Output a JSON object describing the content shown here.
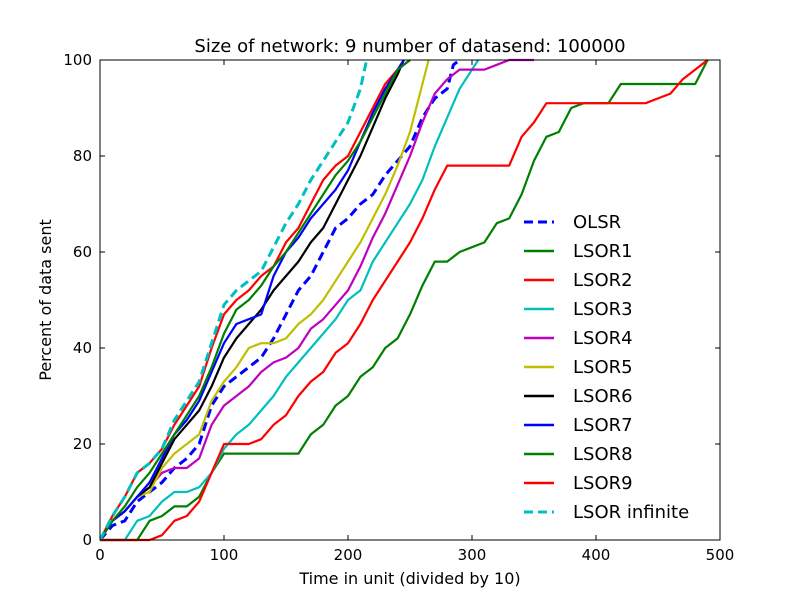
{
  "chart_data": {
    "type": "line",
    "title": "Size of network: 9 number of datasend: 100000",
    "xlabel": "Time in unit (divided by 10)",
    "ylabel": "Percent of data sent",
    "xlim": [
      0,
      500
    ],
    "ylim": [
      0,
      100
    ],
    "xticks": [
      0,
      100,
      200,
      300,
      400,
      500
    ],
    "yticks": [
      0,
      20,
      40,
      60,
      80,
      100
    ],
    "xtick_labels": [
      "0",
      "100",
      "200",
      "300",
      "400",
      "500"
    ],
    "ytick_labels": [
      "0",
      "20",
      "40",
      "60",
      "80",
      "100"
    ],
    "grid": false,
    "legend_position": "lower-right",
    "series": [
      {
        "name": "OLSR",
        "color": "#0000ff",
        "dash": true,
        "x": [
          0,
          10,
          20,
          30,
          40,
          50,
          60,
          70,
          80,
          90,
          100,
          110,
          120,
          130,
          140,
          150,
          160,
          170,
          180,
          190,
          200,
          210,
          220,
          230,
          240,
          250,
          260,
          270,
          280,
          285,
          290
        ],
        "y": [
          0,
          3,
          4,
          8,
          10,
          12,
          15,
          17,
          20,
          28,
          32,
          34,
          36,
          38,
          42,
          47,
          52,
          55,
          60,
          65,
          67,
          70,
          72,
          76,
          79,
          82,
          88,
          92,
          94,
          99,
          100
        ]
      },
      {
        "name": "LSOR1",
        "color": "#008000",
        "dash": false,
        "x": [
          0,
          30,
          40,
          50,
          60,
          70,
          80,
          90,
          100,
          160,
          170,
          180,
          190,
          200,
          210,
          220,
          230,
          240,
          250,
          260,
          270,
          280,
          290,
          300,
          310,
          320,
          330,
          340,
          350,
          360,
          370,
          380,
          390,
          410,
          420,
          430,
          450,
          470,
          480,
          490
        ],
        "y": [
          0,
          0,
          4,
          5,
          7,
          7,
          9,
          14,
          18,
          18,
          22,
          24,
          28,
          30,
          34,
          36,
          40,
          42,
          47,
          53,
          58,
          58,
          60,
          61,
          62,
          66,
          67,
          72,
          79,
          84,
          85,
          90,
          91,
          91,
          95,
          95,
          95,
          95,
          95,
          100
        ]
      },
      {
        "name": "LSOR2",
        "color": "#ff0000",
        "dash": false,
        "x": [
          0,
          10,
          20,
          30,
          40,
          50,
          60,
          70,
          80,
          90,
          100,
          110,
          120,
          130,
          140,
          150,
          160,
          170,
          180,
          190,
          200,
          210,
          220,
          230,
          240,
          250
        ],
        "y": [
          0,
          5,
          9,
          14,
          16,
          19,
          24,
          28,
          32,
          40,
          47,
          50,
          52,
          55,
          57,
          62,
          65,
          70,
          75,
          78,
          80,
          85,
          90,
          95,
          98,
          100
        ]
      },
      {
        "name": "LSOR3",
        "color": "#00bfbf",
        "dash": false,
        "x": [
          0,
          20,
          30,
          40,
          50,
          60,
          70,
          80,
          90,
          100,
          110,
          120,
          130,
          140,
          150,
          160,
          170,
          180,
          190,
          200,
          210,
          220,
          230,
          240,
          250,
          260,
          270,
          280,
          290,
          300,
          305
        ],
        "y": [
          0,
          0,
          4,
          5,
          8,
          10,
          10,
          11,
          14,
          19,
          22,
          24,
          27,
          30,
          34,
          37,
          40,
          43,
          46,
          50,
          52,
          58,
          62,
          66,
          70,
          75,
          82,
          88,
          94,
          98,
          100
        ]
      },
      {
        "name": "LSOR4",
        "color": "#bf00bf",
        "dash": false,
        "x": [
          0,
          10,
          20,
          30,
          40,
          50,
          60,
          70,
          80,
          90,
          100,
          110,
          120,
          130,
          140,
          150,
          160,
          170,
          180,
          190,
          200,
          210,
          220,
          230,
          240,
          250,
          260,
          270,
          280,
          290,
          300,
          310,
          320,
          330,
          340,
          350
        ],
        "y": [
          0,
          4,
          6,
          9,
          11,
          14,
          15,
          15,
          17,
          24,
          28,
          30,
          32,
          35,
          37,
          38,
          40,
          44,
          46,
          49,
          52,
          57,
          63,
          68,
          74,
          80,
          87,
          93,
          96,
          98,
          98,
          98,
          99,
          100,
          100,
          100
        ]
      },
      {
        "name": "LSOR5",
        "color": "#bfbf00",
        "dash": false,
        "x": [
          0,
          10,
          20,
          30,
          40,
          50,
          60,
          70,
          80,
          90,
          100,
          110,
          120,
          130,
          140,
          150,
          160,
          170,
          180,
          190,
          200,
          210,
          220,
          230,
          240,
          250,
          260,
          265
        ],
        "y": [
          0,
          4,
          6,
          9,
          10,
          15,
          18,
          20,
          22,
          29,
          33,
          36,
          40,
          41,
          41,
          42,
          45,
          47,
          50,
          54,
          58,
          62,
          67,
          72,
          78,
          85,
          95,
          100
        ]
      },
      {
        "name": "LSOR6",
        "color": "#000000",
        "dash": false,
        "x": [
          0,
          10,
          20,
          30,
          40,
          50,
          60,
          70,
          80,
          90,
          100,
          110,
          120,
          130,
          140,
          150,
          160,
          170,
          180,
          190,
          200,
          210,
          220,
          230,
          240,
          245
        ],
        "y": [
          0,
          4,
          6,
          9,
          11,
          16,
          21,
          24,
          27,
          32,
          38,
          42,
          45,
          48,
          52,
          55,
          58,
          62,
          65,
          70,
          75,
          80,
          86,
          92,
          97,
          100
        ]
      },
      {
        "name": "LSOR7",
        "color": "#0000ff",
        "dash": false,
        "x": [
          0,
          10,
          20,
          30,
          40,
          50,
          60,
          70,
          80,
          90,
          100,
          110,
          120,
          130,
          140,
          150,
          160,
          170,
          180,
          190,
          200,
          210,
          220,
          230,
          240,
          245
        ],
        "y": [
          0,
          4,
          6,
          9,
          12,
          17,
          22,
          25,
          29,
          35,
          41,
          45,
          46,
          47,
          55,
          60,
          63,
          67,
          70,
          73,
          77,
          83,
          89,
          94,
          98,
          100
        ]
      },
      {
        "name": "LSOR8",
        "color": "#008000",
        "dash": false,
        "x": [
          0,
          10,
          20,
          30,
          40,
          50,
          60,
          70,
          80,
          90,
          100,
          110,
          120,
          130,
          140,
          150,
          160,
          170,
          180,
          190,
          200,
          210,
          220,
          230,
          240,
          250
        ],
        "y": [
          0,
          4,
          7,
          11,
          14,
          18,
          22,
          26,
          30,
          36,
          43,
          48,
          50,
          53,
          57,
          60,
          64,
          68,
          72,
          76,
          79,
          83,
          88,
          93,
          98,
          100
        ]
      },
      {
        "name": "LSOR9",
        "color": "#ff0000",
        "dash": false,
        "x": [
          0,
          40,
          50,
          60,
          70,
          80,
          90,
          100,
          110,
          120,
          130,
          140,
          150,
          160,
          170,
          180,
          190,
          200,
          210,
          220,
          230,
          240,
          250,
          260,
          270,
          280,
          290,
          300,
          310,
          320,
          330,
          340,
          350,
          360,
          370,
          380,
          390,
          400,
          410,
          420,
          430,
          440,
          450,
          460,
          470,
          480,
          490
        ],
        "y": [
          0,
          0,
          1,
          4,
          5,
          8,
          14,
          20,
          20,
          20,
          21,
          24,
          26,
          30,
          33,
          35,
          39,
          41,
          45,
          50,
          54,
          58,
          62,
          67,
          73,
          78,
          78,
          78,
          78,
          78,
          78,
          84,
          87,
          91,
          91,
          91,
          91,
          91,
          91,
          91,
          91,
          91,
          92,
          93,
          96,
          98,
          100
        ]
      },
      {
        "name": "LSOR infinite",
        "color": "#00bfbf",
        "dash": true,
        "x": [
          0,
          10,
          20,
          30,
          40,
          50,
          60,
          70,
          80,
          90,
          100,
          110,
          120,
          130,
          140,
          150,
          160,
          170,
          180,
          190,
          200,
          210,
          215
        ],
        "y": [
          0,
          5,
          9,
          14,
          16,
          19,
          25,
          29,
          33,
          41,
          49,
          52,
          54,
          56,
          61,
          66,
          70,
          75,
          79,
          83,
          87,
          94,
          100
        ]
      }
    ]
  }
}
